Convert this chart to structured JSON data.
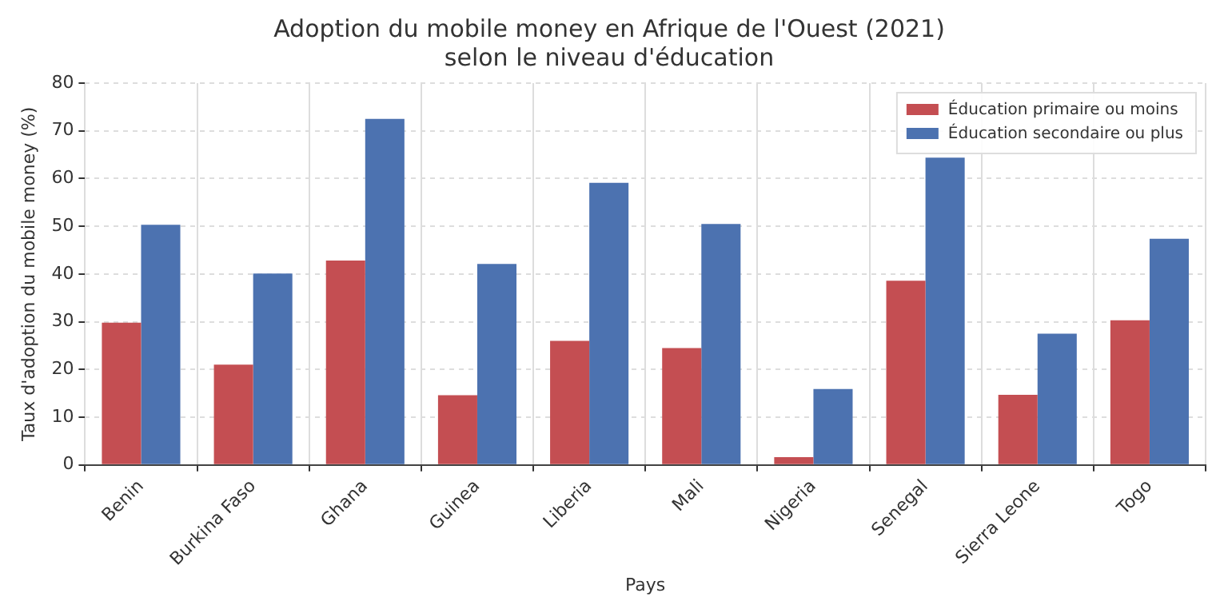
{
  "chart_data": {
    "type": "bar",
    "title": "Adoption du mobile money en Afrique de l'Ouest (2021)\nselon le niveau d'éducation",
    "xlabel": "Pays",
    "ylabel": "Taux d'adoption du mobile money (%)",
    "categories": [
      "Benin",
      "Burkina Faso",
      "Ghana",
      "Guinea",
      "Liberia",
      "Mali",
      "Nigeria",
      "Senegal",
      "Sierra Leone",
      "Togo"
    ],
    "series": [
      {
        "name": "Éducation primaire ou moins",
        "color": "#c44e52",
        "values": [
          29.8,
          21,
          42.8,
          14.6,
          26,
          24.5,
          1.6,
          38.6,
          14.7,
          30.3
        ]
      },
      {
        "name": "Éducation secondaire ou plus",
        "color": "#4c72b0",
        "values": [
          50.3,
          40.1,
          72.5,
          42.1,
          59.1,
          50.5,
          15.9,
          64.4,
          27.5,
          47.4
        ]
      }
    ],
    "ylim": [
      0,
      80
    ],
    "yticks": [
      0,
      10,
      20,
      30,
      40,
      50,
      60,
      70,
      80
    ],
    "grid": true,
    "legend": "top right"
  }
}
